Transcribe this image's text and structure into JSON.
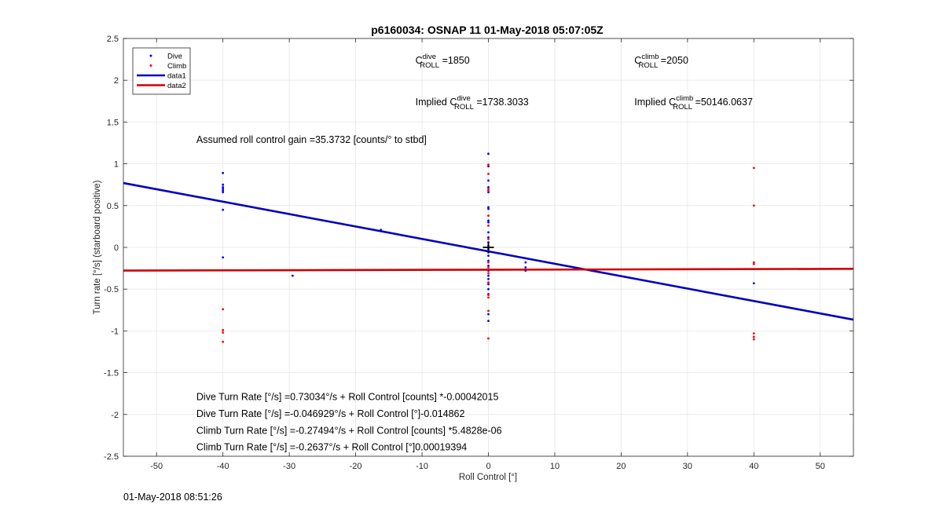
{
  "chart_data": {
    "type": "scatter",
    "title": "p6160034: OSNAP 11 01-May-2018 05:07:05Z",
    "xlabel": "Roll Control [°]",
    "ylabel": "Turn rate [°/s] (starboard positive)",
    "xlim": [
      -55,
      55
    ],
    "ylim": [
      -2.5,
      2.5
    ],
    "xticks": [
      -50,
      -40,
      -30,
      -20,
      -10,
      0,
      10,
      20,
      30,
      40,
      50
    ],
    "yticks": [
      -2.5,
      -2,
      -1.5,
      -1,
      -0.5,
      0,
      0.5,
      1,
      1.5,
      2,
      2.5
    ],
    "xtick_labels": [
      "-50",
      "-40",
      "-30",
      "-20",
      "-10",
      "0",
      "10",
      "20",
      "30",
      "40",
      "50"
    ],
    "ytick_labels": [
      "-2.5",
      "-2",
      "-1.5",
      "-1",
      "-0.5",
      "0",
      "0.5",
      "1",
      "1.5",
      "2",
      "2.5"
    ],
    "grid": true,
    "legend_position": "top-left",
    "series": [
      {
        "name": "Dive",
        "kind": "points",
        "color": "#0000ff",
        "points": [
          [
            -40,
            0.89
          ],
          [
            -40,
            0.75
          ],
          [
            -40,
            0.72
          ],
          [
            -40,
            0.7
          ],
          [
            -40,
            0.68
          ],
          [
            -40,
            0.66
          ],
          [
            -40,
            0.45
          ],
          [
            -40,
            -0.12
          ],
          [
            -16.2,
            0.21
          ],
          [
            -29.5,
            -0.34
          ],
          [
            0,
            1.12
          ],
          [
            0,
            0.97
          ],
          [
            0,
            0.8
          ],
          [
            0,
            0.72
          ],
          [
            0,
            0.66
          ],
          [
            0,
            0.48
          ],
          [
            0,
            0.46
          ],
          [
            0,
            0.32
          ],
          [
            0,
            0.3
          ],
          [
            0,
            0.18
          ],
          [
            0,
            0.12
          ],
          [
            0,
            0.06
          ],
          [
            0,
            0.02
          ],
          [
            0,
            -0.02
          ],
          [
            0,
            -0.06
          ],
          [
            0,
            -0.1
          ],
          [
            0,
            -0.16
          ],
          [
            0,
            -0.22
          ],
          [
            0,
            -0.28
          ],
          [
            0,
            -0.34
          ],
          [
            0,
            -0.38
          ],
          [
            0,
            -0.44
          ],
          [
            0,
            -0.5
          ],
          [
            0,
            -0.56
          ],
          [
            0,
            -0.8
          ],
          [
            0,
            -0.88
          ],
          [
            5.6,
            -0.18
          ],
          [
            5.6,
            -0.24
          ],
          [
            5.6,
            -0.28
          ],
          [
            40,
            -0.43
          ]
        ]
      },
      {
        "name": "Climb",
        "kind": "points",
        "color": "#ff0000",
        "points": [
          [
            -40,
            -0.74
          ],
          [
            -40,
            -0.99
          ],
          [
            -40,
            -1.02
          ],
          [
            -40,
            -1.13
          ],
          [
            0,
            0.99
          ],
          [
            0,
            0.88
          ],
          [
            0,
            0.7
          ],
          [
            0,
            0.68
          ],
          [
            0,
            0.38
          ],
          [
            0,
            0.26
          ],
          [
            0,
            0.1
          ],
          [
            0,
            -0.18
          ],
          [
            0,
            -0.24
          ],
          [
            0,
            -0.31
          ],
          [
            0,
            -0.42
          ],
          [
            0,
            -0.57
          ],
          [
            0,
            -0.6
          ],
          [
            0,
            -0.76
          ],
          [
            0,
            -1.09
          ],
          [
            40,
            0.95
          ],
          [
            40,
            0.5
          ],
          [
            40,
            -0.18
          ],
          [
            40,
            -0.2
          ],
          [
            40,
            -1.03
          ],
          [
            40,
            -1.07
          ],
          [
            40,
            -1.1
          ]
        ]
      },
      {
        "name": "data1",
        "kind": "line",
        "color": "#0000c0",
        "points": [
          [
            -55,
            0.77
          ],
          [
            55,
            -0.865
          ]
        ]
      },
      {
        "name": "data2",
        "kind": "line",
        "color": "#d00000",
        "points": [
          [
            -55,
            -0.278
          ],
          [
            55,
            -0.257
          ]
        ]
      }
    ],
    "marker": {
      "kind": "plus",
      "x": 0,
      "y": 0,
      "color": "#000000"
    },
    "annotations": {
      "c_dive": {
        "prefix": "C",
        "sup": "dive",
        "sub": "ROLL",
        "suffix": " =1850",
        "x": -11,
        "y": 2.2
      },
      "c_climb": {
        "prefix": "C",
        "sup": "climb",
        "sub": "ROLL",
        "suffix": " =2050",
        "x": 22,
        "y": 2.2
      },
      "implied_dive": {
        "prefix": "Implied C",
        "sup": "dive",
        "sub": "ROLL",
        "suffix": " =1738.3033",
        "x": -11,
        "y": 1.7
      },
      "implied_climb": {
        "prefix": "Implied C",
        "sup": "climb",
        "sub": "ROLL",
        "suffix": " =50146.0637",
        "x": 22,
        "y": 1.7
      },
      "gain": {
        "text": "Assumed roll control gain =35.3732 [counts/° to stbd]",
        "x": -44,
        "y": 1.25
      },
      "fit1": {
        "text": "Dive Turn Rate [°/s] =0.73034°/s + Roll Control [counts] *-0.00042015",
        "x": -44,
        "y": -1.83
      },
      "fit2": {
        "text": "Dive Turn Rate [°/s] =-0.046929°/s + Roll Control [°]-0.014862",
        "x": -44,
        "y": -2.03
      },
      "fit3": {
        "text": "Climb Turn Rate [°/s] =-0.27494°/s + Roll Control [counts] *5.4828e-06",
        "x": -44,
        "y": -2.23
      },
      "fit4": {
        "text": "Climb Turn Rate [°/s] =-0.2637°/s + Roll Control [°]0.00019394",
        "x": -44,
        "y": -2.43
      }
    }
  },
  "timestamp": "01-May-2018 08:51:26"
}
